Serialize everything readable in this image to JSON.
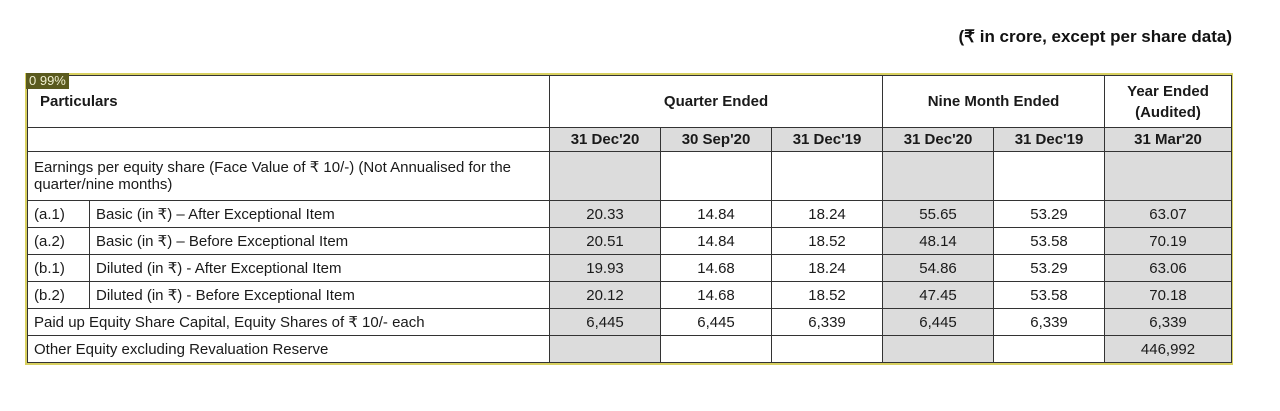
{
  "note": "(₹ in crore, except per share data)",
  "badge": "0 99%",
  "header": {
    "particulars": "Particulars",
    "quarter_ended": "Quarter Ended",
    "nine_month_ended": "Nine Month Ended",
    "year_ended": "Year Ended (Audited)",
    "dates": [
      "31 Dec'20",
      "30 Sep'20",
      "31 Dec'19",
      "31 Dec'20",
      "31 Dec'19",
      "31 Mar'20"
    ]
  },
  "rows": {
    "eps_label": "Earnings per equity share (Face Value of ₹ 10/-) (Not Annualised for the quarter/nine months)",
    "a1": {
      "code": "(a.1)",
      "label": "Basic (in ₹) – After Exceptional Item",
      "values": [
        "20.33",
        "14.84",
        "18.24",
        "55.65",
        "53.29",
        "63.07"
      ]
    },
    "a2": {
      "code": "(a.2)",
      "label": "Basic (in ₹) – Before Exceptional Item",
      "values": [
        "20.51",
        "14.84",
        "18.52",
        "48.14",
        "53.58",
        "70.19"
      ]
    },
    "b1": {
      "code": "(b.1)",
      "label": "Diluted (in ₹) - After Exceptional Item",
      "values": [
        "19.93",
        "14.68",
        "18.24",
        "54.86",
        "53.29",
        "63.06"
      ]
    },
    "b2": {
      "code": "(b.2)",
      "label": "Diluted (in ₹) - Before Exceptional Item",
      "values": [
        "20.12",
        "14.68",
        "18.52",
        "47.45",
        "53.58",
        "70.18"
      ]
    },
    "paid_up": {
      "label": "Paid up Equity Share Capital, Equity Shares of ₹ 10/- each",
      "values": [
        "6,445",
        "6,445",
        "6,339",
        "6,445",
        "6,339",
        "6,339"
      ]
    },
    "other_equity": {
      "label": "Other Equity excluding Revaluation Reserve",
      "value": "446,992"
    }
  }
}
